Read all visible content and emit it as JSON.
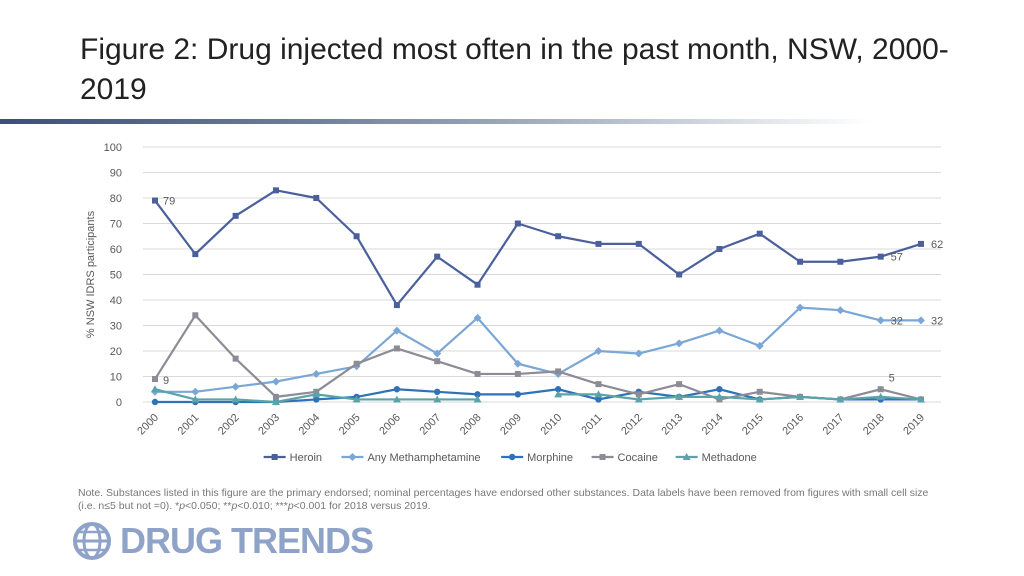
{
  "title": "Figure 2: Drug injected most often in the past month, NSW, 2000-2019",
  "note": {
    "text_a": "Note. Substances listed in this figure are the primary endorsed; nominal percentages have endorsed other substances. Data labels have been removed from figures with small cell size (i.e. n≤5 but not =0). *",
    "p1": "p",
    "text_b": "<0.050; **",
    "p2": "p",
    "text_c": "<0.010; ***",
    "p3": "p",
    "text_d": "<0.001 for 2018 versus 2019."
  },
  "logo": {
    "text": "DRUG TRENDS",
    "icon": "globe-icon",
    "color": "#8fa3c9"
  },
  "chart_data": {
    "type": "line",
    "ylabel": "% NSW IDRS participants",
    "xlabel": "",
    "ylim": [
      0,
      100
    ],
    "yticks": [
      0,
      10,
      20,
      30,
      40,
      50,
      60,
      70,
      80,
      90,
      100
    ],
    "grid": true,
    "legend_position": "bottom",
    "x": [
      "2000",
      "2001",
      "2002",
      "2003",
      "2004",
      "2005",
      "2006",
      "2007",
      "2008",
      "2009",
      "2010",
      "2011",
      "2012",
      "2013",
      "2014",
      "2015",
      "2016",
      "2017",
      "2018",
      "2019"
    ],
    "series": [
      {
        "name": "Heroin",
        "color": "#4a5f9c",
        "marker": "square",
        "values": [
          79,
          58,
          73,
          83,
          80,
          65,
          38,
          57,
          46,
          70,
          65,
          62,
          62,
          50,
          60,
          66,
          55,
          55,
          57,
          62
        ]
      },
      {
        "name": "Any Methamphetamine",
        "color": "#7aa7d6",
        "marker": "diamond",
        "values": [
          4,
          4,
          6,
          8,
          11,
          14,
          28,
          19,
          33,
          15,
          11,
          20,
          19,
          23,
          28,
          22,
          37,
          36,
          32,
          32
        ]
      },
      {
        "name": "Morphine",
        "color": "#2f72b8",
        "marker": "circle",
        "values": [
          0,
          0,
          0,
          0,
          1,
          2,
          5,
          4,
          3,
          3,
          5,
          1,
          4,
          2,
          5,
          1,
          2,
          1,
          1,
          1
        ]
      },
      {
        "name": "Cocaine",
        "color": "#8c8c96",
        "marker": "square",
        "values": [
          9,
          34,
          17,
          2,
          4,
          15,
          21,
          16,
          11,
          11,
          12,
          7,
          3,
          7,
          1,
          4,
          2,
          1,
          5,
          1
        ]
      },
      {
        "name": "Methadone",
        "color": "#5aa3a8",
        "marker": "triangle",
        "values": [
          5,
          1,
          1,
          0,
          3,
          1,
          1,
          1,
          1,
          null,
          3,
          3,
          1,
          2,
          2,
          1,
          2,
          1,
          2,
          1
        ]
      }
    ],
    "data_labels": [
      {
        "series": "Heroin",
        "x": "2000",
        "text": "79"
      },
      {
        "series": "Heroin",
        "x": "2018",
        "text": "57"
      },
      {
        "series": "Heroin",
        "x": "2019",
        "text": "62"
      },
      {
        "series": "Any Methamphetamine",
        "x": "2018",
        "text": "32"
      },
      {
        "series": "Any Methamphetamine",
        "x": "2019",
        "text": "32"
      },
      {
        "series": "Cocaine",
        "x": "2000",
        "text": "9"
      },
      {
        "series": "Cocaine",
        "x": "2018",
        "text": "5"
      }
    ]
  }
}
